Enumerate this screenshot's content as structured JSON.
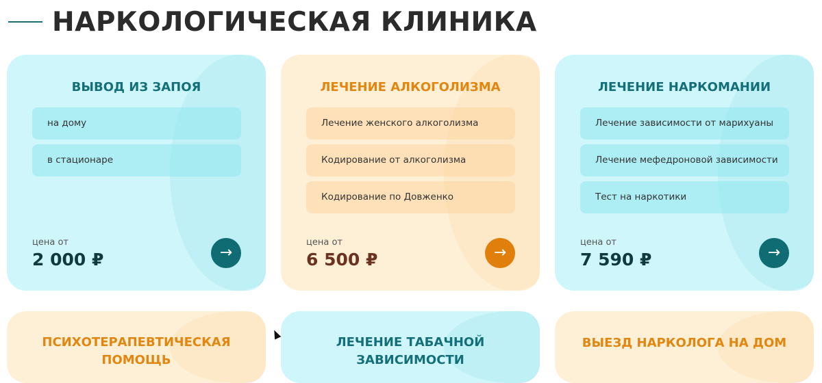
{
  "header": {
    "title": "НАРКОЛОГИЧЕСКАЯ КЛИНИКА"
  },
  "cards": [
    {
      "title": "ВЫВОД ИЗ ЗАПОЯ",
      "theme": "cyan",
      "items": [
        "на дому",
        "в стационаре"
      ],
      "price_label": "цена от",
      "price": "2 000 ₽"
    },
    {
      "title": "ЛЕЧЕНИЕ АЛКОГОЛИЗМА",
      "theme": "orange",
      "items": [
        "Лечение женского алкоголизма",
        "Кодирование от алкоголизма",
        "Кодирование по Довженко"
      ],
      "price_label": "цена от",
      "price": "6 500 ₽"
    },
    {
      "title": "ЛЕЧЕНИЕ НАРКОМАНИИ",
      "theme": "cyan",
      "items": [
        "Лечение зависимости от марихуаны",
        "Лечение мефедроновой зависимости",
        "Тест на наркотики"
      ],
      "price_label": "цена от",
      "price": "7 590 ₽"
    },
    {
      "title": "ПСИХОТЕРАПЕВТИЧЕСКАЯ ПОМОЩЬ",
      "theme": "orange"
    },
    {
      "title": "ЛЕЧЕНИЕ ТАБАЧНОЙ ЗАВИСИМОСТИ",
      "theme": "cyan"
    },
    {
      "title": "ВЫЕЗД НАРКОЛОГА НА ДОМ",
      "theme": "orange"
    }
  ],
  "colors": {
    "teal": "#146f78",
    "orange": "#e2860f",
    "cyan_bg": "#cff6fa",
    "orange_bg": "#fef0d6"
  },
  "icons": {
    "button": "arrow-right-icon"
  }
}
